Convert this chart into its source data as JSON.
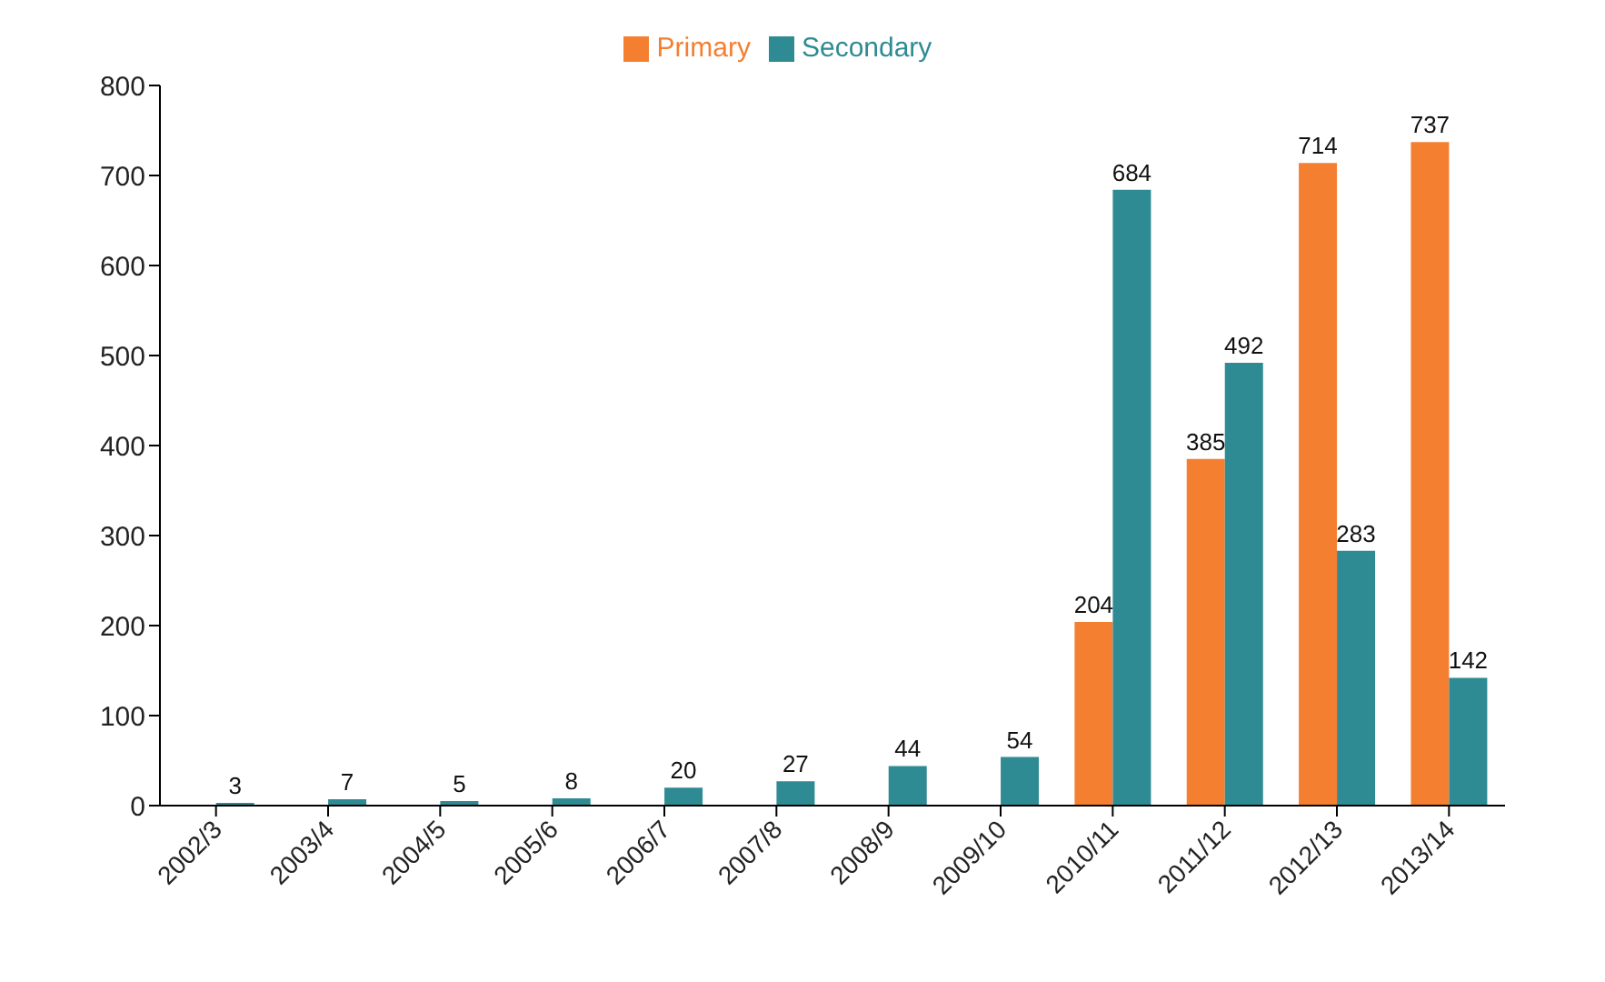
{
  "chart_data": {
    "type": "bar",
    "categories": [
      "2002/3",
      "2003/4",
      "2004/5",
      "2005/6",
      "2006/7",
      "2007/8",
      "2008/9",
      "2009/10",
      "2010/11",
      "2011/12",
      "2012/13",
      "2013/14"
    ],
    "series": [
      {
        "name": "Primary",
        "color": "#f47f31",
        "values": [
          null,
          null,
          null,
          null,
          null,
          null,
          null,
          null,
          204,
          385,
          714,
          737
        ]
      },
      {
        "name": "Secondary",
        "color": "#2f8b93",
        "values": [
          3,
          7,
          5,
          8,
          20,
          27,
          44,
          54,
          684,
          492,
          283,
          142
        ]
      }
    ],
    "ylim": [
      0,
      800
    ],
    "yticks": [
      0,
      100,
      200,
      300,
      400,
      500,
      600,
      700,
      800
    ],
    "grid": false,
    "legend": "top",
    "data_labels": true
  }
}
